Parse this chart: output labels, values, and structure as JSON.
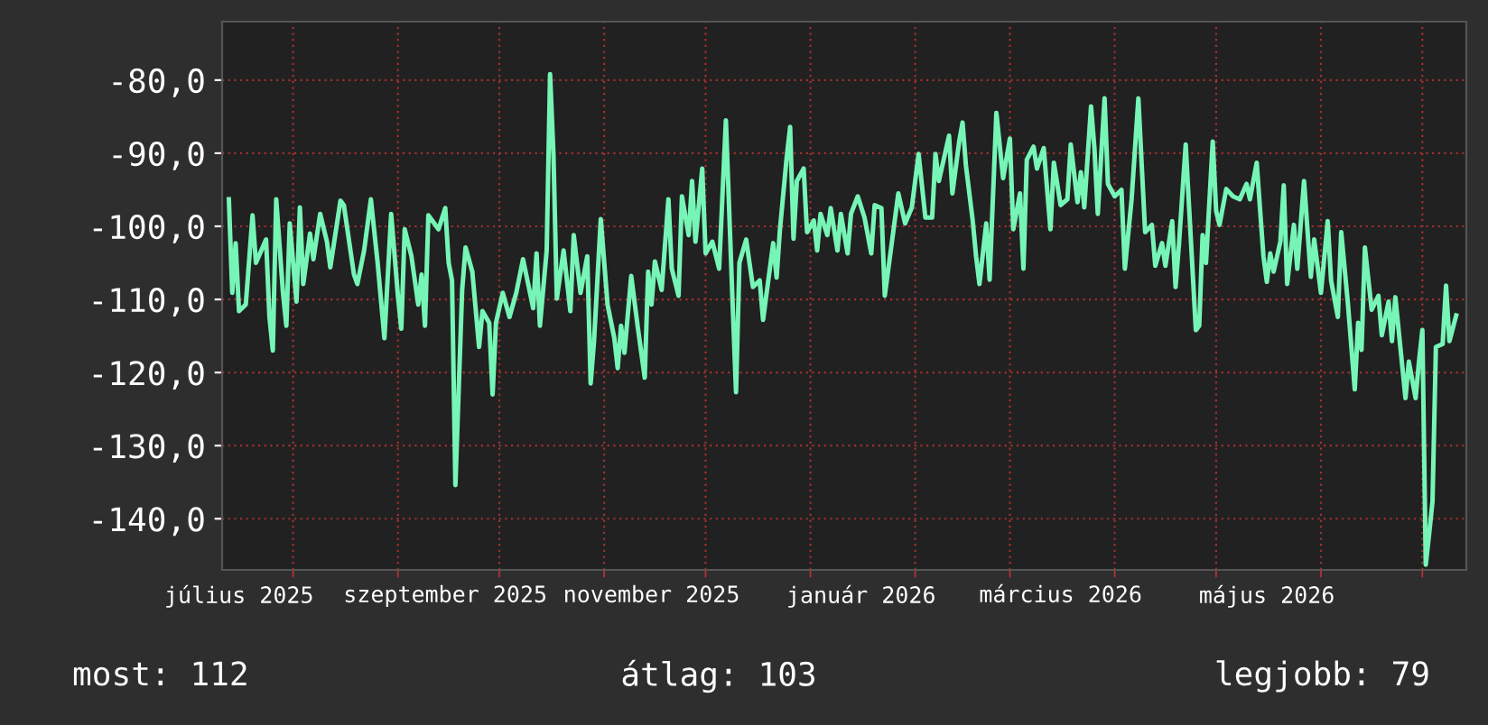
{
  "chart_data": {
    "type": "line",
    "x": [
      "2025-07-13",
      "2025-07-14",
      "2025-07-15",
      "2025-07-16",
      "2025-07-18",
      "2025-07-20",
      "2025-07-21",
      "2025-07-24",
      "2025-07-25",
      "2025-07-26",
      "2025-07-27",
      "2025-07-29",
      "2025-07-30",
      "2025-07-31",
      "2025-08-02",
      "2025-08-03",
      "2025-08-04",
      "2025-08-06",
      "2025-08-07",
      "2025-08-09",
      "2025-08-11",
      "2025-08-12",
      "2025-08-15",
      "2025-08-16",
      "2025-08-19",
      "2025-08-20",
      "2025-08-22",
      "2025-08-24",
      "2025-08-26",
      "2025-08-28",
      "2025-08-30",
      "2025-09-01",
      "2025-09-02",
      "2025-09-03",
      "2025-09-05",
      "2025-09-07",
      "2025-09-08",
      "2025-09-09",
      "2025-09-10",
      "2025-09-13",
      "2025-09-15",
      "2025-09-16",
      "2025-09-17",
      "2025-09-18",
      "2025-09-20",
      "2025-09-21",
      "2025-09-23",
      "2025-09-25",
      "2025-09-26",
      "2025-09-28",
      "2025-09-29",
      "2025-09-30",
      "2025-10-02",
      "2025-10-04",
      "2025-10-06",
      "2025-10-08",
      "2025-10-11",
      "2025-10-12",
      "2025-10-13",
      "2025-10-15",
      "2025-10-16",
      "2025-10-17",
      "2025-10-18",
      "2025-10-20",
      "2025-10-22",
      "2025-10-23",
      "2025-10-25",
      "2025-10-27",
      "2025-10-28",
      "2025-10-29",
      "2025-10-31",
      "2025-11-02",
      "2025-11-04",
      "2025-11-05",
      "2025-11-06",
      "2025-11-07",
      "2025-11-09",
      "2025-11-11",
      "2025-11-13",
      "2025-11-14",
      "2025-11-15",
      "2025-11-16",
      "2025-11-18",
      "2025-11-20",
      "2025-11-21",
      "2025-11-23",
      "2025-11-24",
      "2025-11-26",
      "2025-11-27",
      "2025-11-28",
      "2025-11-30",
      "2025-12-01",
      "2025-12-03",
      "2025-12-05",
      "2025-12-07",
      "2025-12-09",
      "2025-12-10",
      "2025-12-11",
      "2025-12-13",
      "2025-12-15",
      "2025-12-17",
      "2025-12-18",
      "2025-12-21",
      "2025-12-22",
      "2025-12-23",
      "2025-12-25",
      "2025-12-26",
      "2025-12-27",
      "2025-12-28",
      "2025-12-30",
      "2025-12-31",
      "2026-01-02",
      "2026-01-03",
      "2026-01-04",
      "2026-01-06",
      "2026-01-07",
      "2026-01-09",
      "2026-01-10",
      "2026-01-12",
      "2026-01-13",
      "2026-01-15",
      "2026-01-17",
      "2026-01-19",
      "2026-01-20",
      "2026-01-22",
      "2026-01-23",
      "2026-01-25",
      "2026-01-27",
      "2026-01-29",
      "2026-01-31",
      "2026-02-02",
      "2026-02-04",
      "2026-02-06",
      "2026-02-07",
      "2026-02-08",
      "2026-02-11",
      "2026-02-12",
      "2026-02-14",
      "2026-02-15",
      "2026-02-16",
      "2026-02-18",
      "2026-02-19",
      "2026-02-20",
      "2026-02-22",
      "2026-02-23",
      "2026-02-25",
      "2026-02-27",
      "2026-03-01",
      "2026-03-02",
      "2026-03-04",
      "2026-03-05",
      "2026-03-06",
      "2026-03-08",
      "2026-03-09",
      "2026-03-11",
      "2026-03-13",
      "2026-03-14",
      "2026-03-16",
      "2026-03-18",
      "2026-03-19",
      "2026-03-21",
      "2026-03-22",
      "2026-03-23",
      "2026-03-25",
      "2026-03-26",
      "2026-03-27",
      "2026-03-29",
      "2026-03-30",
      "2026-04-01",
      "2026-04-03",
      "2026-04-04",
      "2026-04-06",
      "2026-04-08",
      "2026-04-09",
      "2026-04-10",
      "2026-04-12",
      "2026-04-13",
      "2026-04-15",
      "2026-04-16",
      "2026-04-18",
      "2026-04-19",
      "2026-04-20",
      "2026-04-22",
      "2026-04-23",
      "2026-04-25",
      "2026-04-26",
      "2026-04-27",
      "2026-04-28",
      "2026-04-30",
      "2026-05-01",
      "2026-05-02",
      "2026-05-04",
      "2026-05-06",
      "2026-05-08",
      "2026-05-10",
      "2026-05-11",
      "2026-05-13",
      "2026-05-15",
      "2026-05-16",
      "2026-05-17",
      "2026-05-18",
      "2026-05-20",
      "2026-05-21",
      "2026-05-22",
      "2026-05-24",
      "2026-05-25",
      "2026-05-27",
      "2026-05-28",
      "2026-05-29",
      "2026-05-30",
      "2026-06-01",
      "2026-06-03",
      "2026-06-04",
      "2026-06-06",
      "2026-06-07",
      "2026-06-09",
      "2026-06-11",
      "2026-06-12",
      "2026-06-13",
      "2026-06-14",
      "2026-06-16",
      "2026-06-18",
      "2026-06-19",
      "2026-06-21",
      "2026-06-22",
      "2026-06-23",
      "2026-06-26",
      "2026-06-27",
      "2026-06-29",
      "2026-06-30",
      "2026-07-01",
      "2026-07-02",
      "2026-07-03",
      "2026-07-04",
      "2026-07-05",
      "2026-07-07",
      "2026-07-08",
      "2026-07-09",
      "2026-07-11"
    ],
    "series": [
      {
        "color": "#76f5b7",
        "values": [
          -96.3,
          -109.1,
          -102.3,
          -111.6,
          -110.7,
          -98.5,
          -105,
          -101.8,
          -112.4,
          -117,
          -96.3,
          -109.1,
          -113.6,
          -99.6,
          -110.3,
          -97.4,
          -107.9,
          -101,
          -104.5,
          -98.3,
          -102.1,
          -105.6,
          -96.5,
          -97.1,
          -106.6,
          -107.9,
          -103.3,
          -96.3,
          -105,
          -115.3,
          -98.3,
          -109.5,
          -114,
          -100.4,
          -104.1,
          -110.7,
          -106.6,
          -113.6,
          -98.5,
          -100.4,
          -97.5,
          -105,
          -107.4,
          -135.4,
          -108.7,
          -102.9,
          -106.2,
          -116.5,
          -111.6,
          -113.2,
          -123,
          -113.2,
          -109.1,
          -112.4,
          -109.1,
          -104.5,
          -111.2,
          -103.7,
          -113.6,
          -103.3,
          -79.2,
          -90.1,
          -109.9,
          -103.3,
          -111.6,
          -101.2,
          -109.1,
          -104.1,
          -121.5,
          -115.7,
          -99,
          -110.7,
          -115.3,
          -119.4,
          -113.6,
          -117.3,
          -106.8,
          -114,
          -120.7,
          -106.2,
          -110.7,
          -104.8,
          -108.7,
          -96.3,
          -105.8,
          -109.5,
          -95.9,
          -101.2,
          -93.8,
          -102.1,
          -92.1,
          -103.7,
          -102.1,
          -105.8,
          -85.5,
          -110.7,
          -122.7,
          -105,
          -101.8,
          -108.3,
          -107.4,
          -112.8,
          -102.3,
          -107,
          -100.4,
          -90.5,
          -86.4,
          -101.7,
          -93.8,
          -92.1,
          -100.8,
          -99.2,
          -103.3,
          -98.3,
          -101.2,
          -97.5,
          -103.3,
          -98.3,
          -103.7,
          -98.3,
          -95.9,
          -98.8,
          -103.7,
          -97.1,
          -97.5,
          -109.5,
          -102.5,
          -95.5,
          -99.6,
          -97.4,
          -90.1,
          -98.8,
          -98.8,
          -90.1,
          -93.8,
          -87.6,
          -95.5,
          -88.4,
          -85.8,
          -91.7,
          -99.2,
          -104.1,
          -107.9,
          -99.6,
          -107.3,
          -84.5,
          -93.4,
          -88,
          -100.4,
          -95.5,
          -105.8,
          -90.9,
          -89.1,
          -92.1,
          -89.3,
          -100.4,
          -91.3,
          -97.1,
          -96.3,
          -88.8,
          -96.7,
          -92.6,
          -97.4,
          -83.6,
          -89.3,
          -98.3,
          -82.5,
          -94.2,
          -95.9,
          -95,
          -105.8,
          -96.3,
          -82.5,
          -91.7,
          -100.8,
          -99.8,
          -105.4,
          -102.3,
          -105.4,
          -99.3,
          -108.3,
          -102.5,
          -88.8,
          -97.4,
          -114.2,
          -113.6,
          -101.2,
          -105,
          -88.4,
          -97.9,
          -99.8,
          -94.9,
          -95.9,
          -96.3,
          -94.2,
          -96.3,
          -91.3,
          -104.1,
          -107.6,
          -103.7,
          -106.2,
          -102.1,
          -94.4,
          -107.9,
          -99.8,
          -105.8,
          -93.8,
          -100.4,
          -106.9,
          -101.8,
          -109.1,
          -99.3,
          -107.4,
          -112.4,
          -100.8,
          -110.7,
          -122.3,
          -113.2,
          -116.9,
          -102.9,
          -111.4,
          -109.5,
          -114.9,
          -110.3,
          -115.7,
          -109.7,
          -123.5,
          -118.5,
          -123.5,
          -118.5,
          -114.2,
          -146.3,
          -142.1,
          -137.6,
          -116.5,
          -116.1,
          -108.1,
          -115.7,
          -112.2
        ]
      }
    ],
    "xlim": [
      "2025-07-11",
      "2026-07-14"
    ],
    "xticks": [
      {
        "value": "2025-07-16",
        "label": "július 2025"
      },
      {
        "value": "2025-09-15",
        "label": "szeptember 2025"
      },
      {
        "value": "2025-11-15",
        "label": "november 2025"
      },
      {
        "value": "2026-01-16",
        "label": "január 2026"
      },
      {
        "value": "2026-03-16",
        "label": "március 2026"
      },
      {
        "value": "2026-05-16",
        "label": "május 2026"
      },
      {
        "value": "2025-08-01",
        "label": null
      },
      {
        "value": "2025-09-01",
        "label": null
      },
      {
        "value": "2025-10-01",
        "label": null
      },
      {
        "value": "2025-11-01",
        "label": null
      },
      {
        "value": "2025-12-01",
        "label": null
      },
      {
        "value": "2026-01-01",
        "label": null
      },
      {
        "value": "2026-02-01",
        "label": null
      },
      {
        "value": "2026-03-01",
        "label": null
      },
      {
        "value": "2026-04-01",
        "label": null
      },
      {
        "value": "2026-05-01",
        "label": null
      },
      {
        "value": "2026-06-01",
        "label": null
      },
      {
        "value": "2026-07-01",
        "label": null
      }
    ],
    "ylim": [
      -147,
      -72
    ],
    "yticks": [
      {
        "value": -80,
        "label": "-80,0"
      },
      {
        "value": -90,
        "label": "-90,0"
      },
      {
        "value": -100,
        "label": "-100,0"
      },
      {
        "value": -110,
        "label": "-110,0"
      },
      {
        "value": -120,
        "label": "-120,0"
      },
      {
        "value": -130,
        "label": "-130,0"
      },
      {
        "value": -140,
        "label": "-140,0"
      }
    ],
    "grid": true,
    "annotations": [
      "most: 112",
      "átlag: 103",
      "legjobb: 79"
    ]
  }
}
